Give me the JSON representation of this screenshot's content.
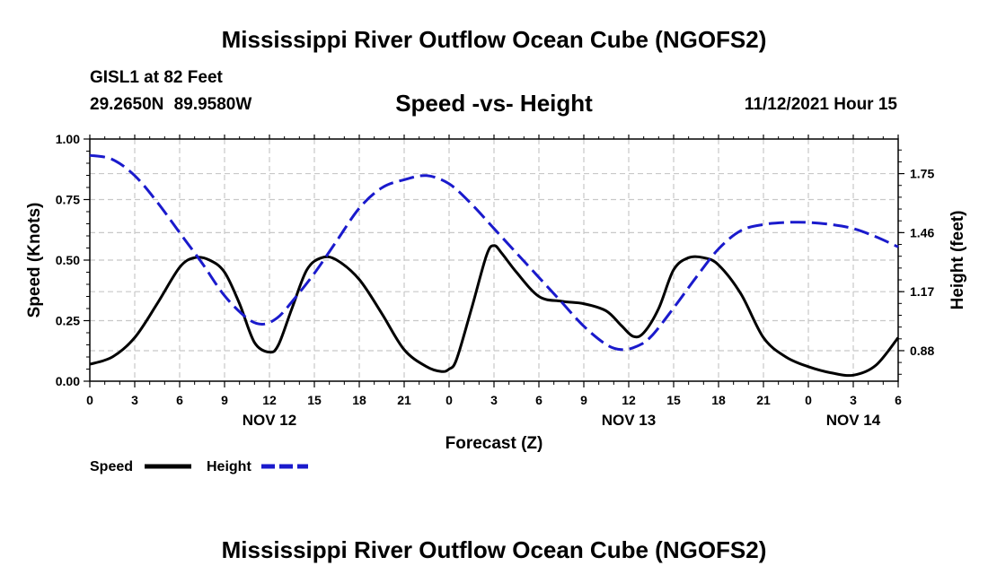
{
  "header": {
    "main_title": "Mississippi River Outflow Ocean Cube (NGOFS2)",
    "station": "GISL1 at 82 Feet",
    "coords": "29.2650N  89.9580W",
    "subtitle": "Speed -vs- Height",
    "datetime": "11/12/2021 Hour 15"
  },
  "footer": {
    "repeated_title": "Mississippi River Outflow Ocean Cube (NGOFS2)"
  },
  "colors": {
    "speed": "#000000",
    "height": "#1a1acc",
    "grid": "#c8c8c8"
  },
  "chart_data": {
    "type": "line",
    "xlabel": "Forecast (Z)",
    "ylabel": "Speed (Knots)",
    "y2label": "Height (feet)",
    "xlim": [
      0,
      54
    ],
    "ylim": [
      0,
      1.0
    ],
    "y2lim": [
      0.73,
      1.92
    ],
    "x_ticks": [
      0,
      3,
      6,
      9,
      12,
      15,
      18,
      21,
      24,
      27,
      30,
      33,
      36,
      39,
      42,
      45,
      48,
      51,
      54
    ],
    "x_tick_labels": [
      "0",
      "3",
      "6",
      "9",
      "12",
      "15",
      "18",
      "21",
      "0",
      "3",
      "6",
      "9",
      "12",
      "15",
      "18",
      "21",
      "0",
      "3",
      "6"
    ],
    "date_labels": [
      {
        "x": 12,
        "label": "NOV 12"
      },
      {
        "x": 36,
        "label": "NOV 13"
      },
      {
        "x": 51,
        "label": "NOV 14"
      }
    ],
    "y_ticks": [
      0,
      0.25,
      0.5,
      0.75,
      1.0
    ],
    "y_tick_labels": [
      "0.00",
      "0.25",
      "0.50",
      "0.75",
      "1.00"
    ],
    "y2_ticks": [
      0.88,
      1.17,
      1.46,
      1.75
    ],
    "y2_tick_labels": [
      "0.88",
      "1.17",
      "1.46",
      "1.75"
    ],
    "legend": [
      {
        "name": "Speed",
        "style": "solid"
      },
      {
        "name": "Height",
        "style": "dashed"
      }
    ],
    "series": [
      {
        "name": "Speed",
        "axis": "left",
        "style": "solid",
        "x": [
          0,
          1.5,
          3,
          4.5,
          6,
          7,
          8,
          9,
          10,
          11,
          12,
          12.6,
          13.5,
          14.5,
          15.5,
          16.5,
          18,
          19.5,
          21,
          22.5,
          23.5,
          24,
          24.5,
          25.5,
          26.5,
          27,
          27.5,
          28.5,
          30,
          31.5,
          33,
          34.5,
          35.5,
          36.3,
          37,
          38,
          39,
          40,
          41,
          42,
          43.5,
          45,
          46.5,
          48,
          49.5,
          51,
          52.5,
          54
        ],
        "values": [
          0.07,
          0.1,
          0.18,
          0.32,
          0.47,
          0.51,
          0.5,
          0.45,
          0.32,
          0.16,
          0.12,
          0.15,
          0.3,
          0.46,
          0.51,
          0.5,
          0.42,
          0.28,
          0.13,
          0.06,
          0.04,
          0.05,
          0.09,
          0.3,
          0.52,
          0.56,
          0.53,
          0.45,
          0.35,
          0.33,
          0.32,
          0.29,
          0.23,
          0.185,
          0.2,
          0.3,
          0.46,
          0.51,
          0.51,
          0.48,
          0.36,
          0.18,
          0.1,
          0.06,
          0.035,
          0.025,
          0.065,
          0.18
        ]
      },
      {
        "name": "Height",
        "axis": "right",
        "style": "dashed",
        "x": [
          0,
          1.5,
          3,
          4.5,
          6,
          7.5,
          9,
          10.5,
          11.5,
          12.5,
          13.5,
          15,
          16.5,
          18,
          19.5,
          21,
          22.5,
          24,
          25.5,
          27,
          28.5,
          30,
          31.5,
          33,
          34.5,
          35.5,
          36.5,
          37.5,
          39,
          40.5,
          42,
          43.5,
          45,
          46.5,
          48,
          49.5,
          51,
          52.5,
          54
        ],
        "values": [
          1.84,
          1.82,
          1.74,
          1.61,
          1.46,
          1.31,
          1.15,
          1.04,
          1.01,
          1.04,
          1.12,
          1.26,
          1.42,
          1.58,
          1.68,
          1.72,
          1.74,
          1.7,
          1.6,
          1.48,
          1.36,
          1.24,
          1.12,
          1.0,
          0.91,
          0.885,
          0.9,
          0.95,
          1.09,
          1.24,
          1.38,
          1.47,
          1.5,
          1.51,
          1.51,
          1.5,
          1.48,
          1.44,
          1.39
        ]
      }
    ]
  }
}
